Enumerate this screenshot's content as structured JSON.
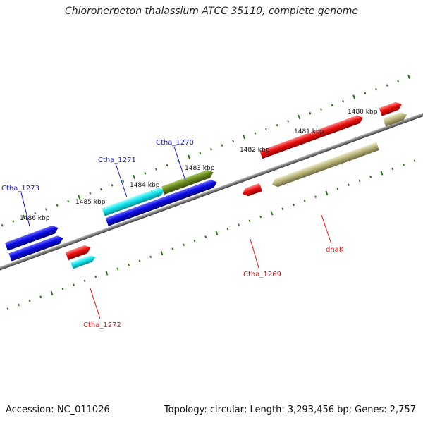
{
  "title": "Chloroherpeton thalassium ATCC 35110, complete genome",
  "footer": {
    "accession": "Accession: NC_011026",
    "summary": "Topology: circular; Length: 3,293,456 bp; Genes: 2,757"
  },
  "scale": {
    "labels": [
      "1480 kbp",
      "1481 kbp",
      "1482 kbp",
      "1483 kbp",
      "1484 kbp",
      "1485 kbp",
      "1486 kbp"
    ]
  },
  "gene_labels": {
    "ctha_1270": "Ctha_1270",
    "ctha_1271": "Ctha_1271",
    "ctha_1273": "Ctha_1273",
    "ctha_1269": "Ctha_1269",
    "ctha_1272": "Ctha_1272",
    "dnak": "dnaK"
  },
  "colors": {
    "blue": "#0a0ae6",
    "cyan": "#10e6ee",
    "olive_green": "#6b8a1e",
    "red": "#ee1010",
    "khaki": "#b9b47a",
    "steel_blue": "#4a86b8",
    "ticks": "#2a7a1a",
    "backbone": "#7a7a7a"
  }
}
